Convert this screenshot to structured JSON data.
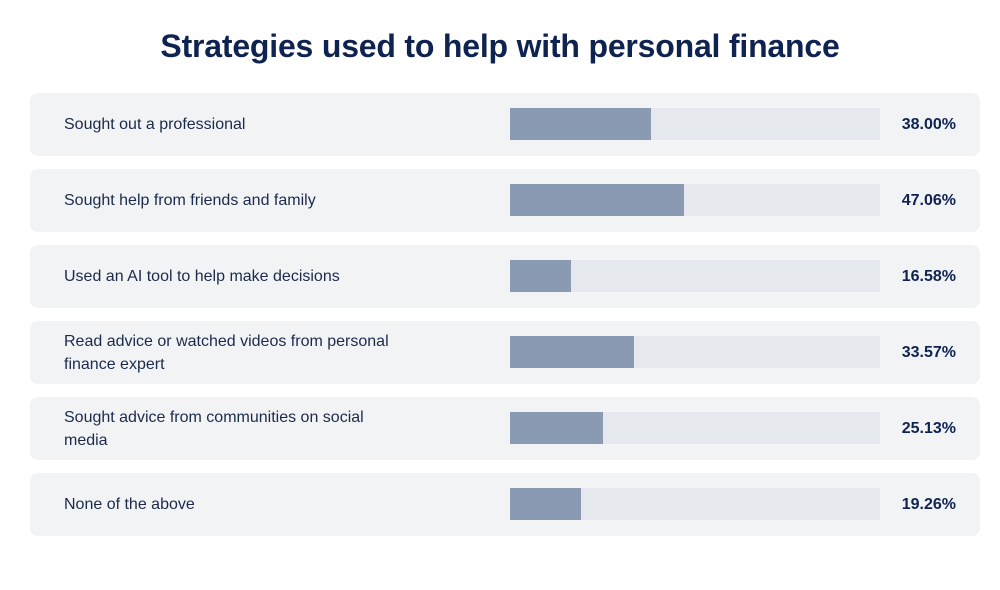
{
  "chart_data": {
    "type": "bar",
    "orientation": "horizontal",
    "title": "Strategies used to help with personal finance",
    "categories": [
      "Sought out a professional",
      "Sought help from friends and family",
      "Used an AI tool to help make decisions",
      "Read advice or watched videos from personal finance expert",
      "Sought advice from communities on social media",
      "None of the above"
    ],
    "values": [
      38.0,
      47.06,
      16.58,
      33.57,
      25.13,
      19.26
    ],
    "value_labels": [
      "38.00%",
      "47.06%",
      "16.58%",
      "33.57%",
      "25.13%",
      "19.26%"
    ],
    "xlim": [
      0,
      100
    ],
    "colors": {
      "bar": "#8a9ab2",
      "track": "#e5e8ec",
      "row_background": "#f2f3f5",
      "title": "#0f2350",
      "text": "#1c2a4a"
    }
  }
}
